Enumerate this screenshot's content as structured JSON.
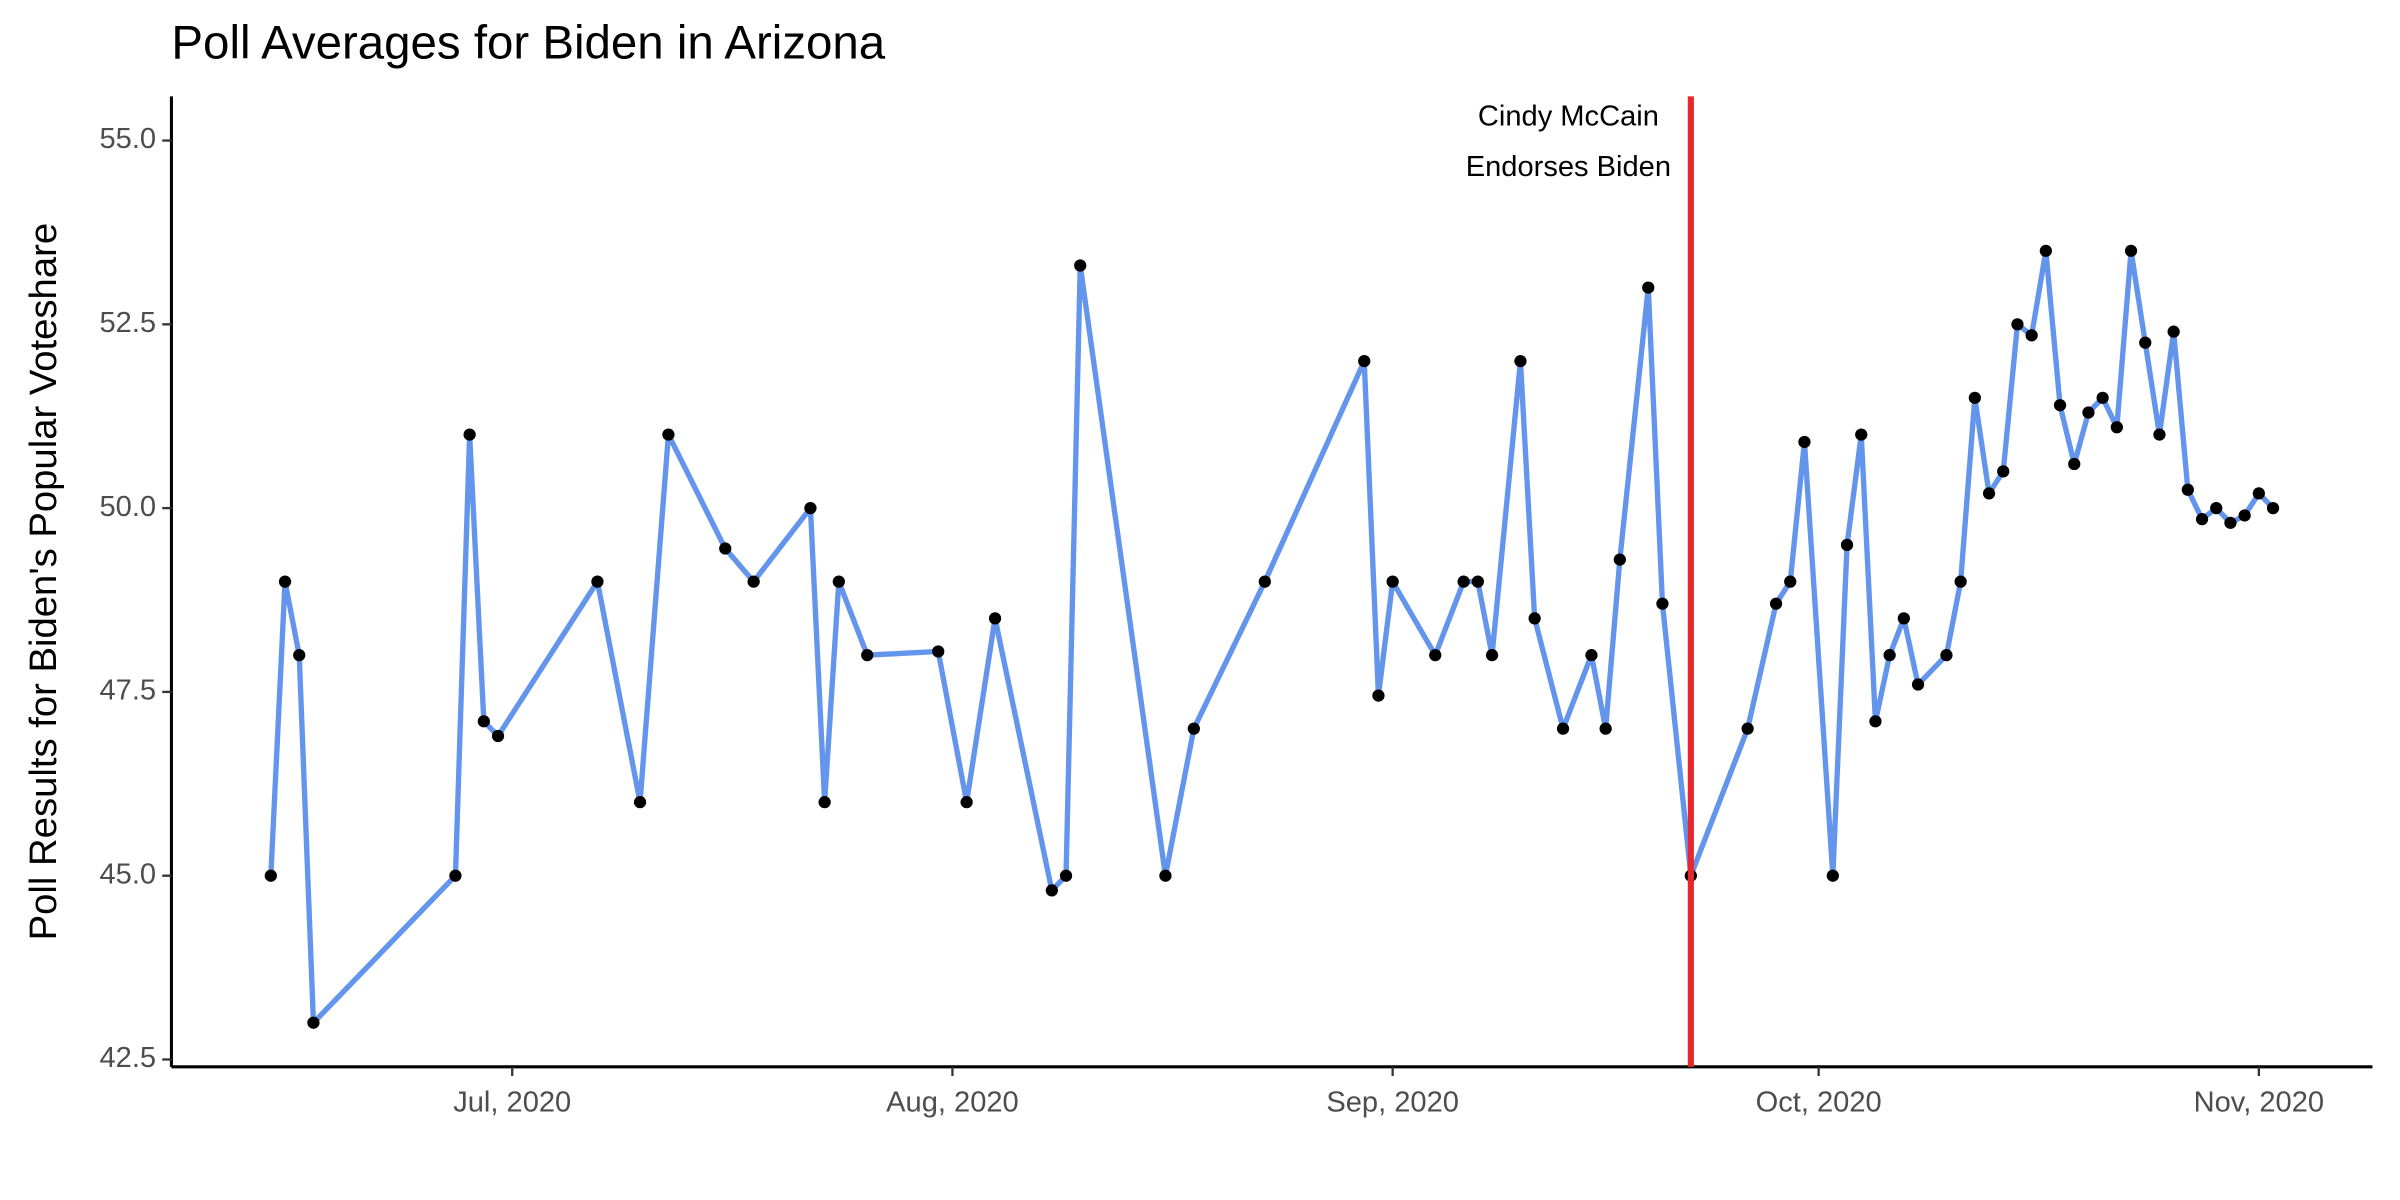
{
  "chart_data": {
    "type": "line",
    "title": "Poll Averages for Biden in Arizona",
    "y_label": "Poll Results for Biden's Popular Voteshare",
    "x": [
      "2020-06-14",
      "2020-06-15",
      "2020-06-16",
      "2020-06-17",
      "2020-06-27",
      "2020-06-28",
      "2020-06-29",
      "2020-06-30",
      "2020-07-07",
      "2020-07-10",
      "2020-07-12",
      "2020-07-16",
      "2020-07-18",
      "2020-07-22",
      "2020-07-23",
      "2020-07-24",
      "2020-07-26",
      "2020-07-31",
      "2020-08-02",
      "2020-08-04",
      "2020-08-08",
      "2020-08-09",
      "2020-08-10",
      "2020-08-16",
      "2020-08-18",
      "2020-08-23",
      "2020-08-30",
      "2020-08-31",
      "2020-09-01",
      "2020-09-04",
      "2020-09-06",
      "2020-09-07",
      "2020-09-08",
      "2020-09-10",
      "2020-09-11",
      "2020-09-13",
      "2020-09-15",
      "2020-09-16",
      "2020-09-17",
      "2020-09-19",
      "2020-09-20",
      "2020-09-22",
      "2020-09-26",
      "2020-09-28",
      "2020-09-29",
      "2020-09-30",
      "2020-10-02",
      "2020-10-03",
      "2020-10-04",
      "2020-10-05",
      "2020-10-06",
      "2020-10-07",
      "2020-10-08",
      "2020-10-10",
      "2020-10-11",
      "2020-10-12",
      "2020-10-13",
      "2020-10-14",
      "2020-10-15",
      "2020-10-16",
      "2020-10-17",
      "2020-10-18",
      "2020-10-19",
      "2020-10-20",
      "2020-10-21",
      "2020-10-22",
      "2020-10-23",
      "2020-10-24",
      "2020-10-25",
      "2020-10-26",
      "2020-10-27",
      "2020-10-28",
      "2020-10-29",
      "2020-10-30",
      "2020-10-31",
      "2020-11-01",
      "2020-11-02"
    ],
    "series": [
      {
        "name": "Biden",
        "color": "#6495ed",
        "point_color": "#000000",
        "values": [
          45,
          49,
          48,
          43,
          45,
          51,
          47.1,
          46.9,
          49,
          46,
          51,
          49.45,
          49,
          50,
          46,
          49,
          48,
          48.05,
          46,
          48.5,
          44.8,
          45,
          53.3,
          45,
          47,
          49,
          52,
          47.45,
          49,
          48,
          49,
          49,
          48,
          52,
          48.5,
          47,
          48,
          47,
          49.3,
          53,
          48.7,
          45,
          47,
          48.7,
          49,
          50.9,
          45,
          49.5,
          51,
          47.1,
          48,
          48.5,
          47.6,
          48,
          49,
          51.5,
          50.2,
          50.5,
          52.5,
          52.35,
          53.5,
          51.4,
          50.6,
          51.3,
          51.5,
          51.1,
          53.5,
          52.25,
          51,
          52.4,
          50.25,
          49.85,
          50,
          49.8,
          49.9,
          50.2,
          50
        ]
      }
    ],
    "xlim": [
      "2020-06-07",
      "2020-11-09"
    ],
    "xticks": [
      {
        "value": "2020-07-01",
        "label": "Jul, 2020"
      },
      {
        "value": "2020-08-01",
        "label": "Aug, 2020"
      },
      {
        "value": "2020-09-01",
        "label": "Sep, 2020"
      },
      {
        "value": "2020-10-01",
        "label": "Oct, 2020"
      },
      {
        "value": "2020-11-01",
        "label": "Nov, 2020"
      }
    ],
    "ylim": [
      42.4,
      55.6
    ],
    "yticks": [
      {
        "value": 42.5,
        "label": "42.5"
      },
      {
        "value": 45,
        "label": "45.0"
      },
      {
        "value": 47.5,
        "label": "47.5"
      },
      {
        "value": 50,
        "label": "50.0"
      },
      {
        "value": 52.5,
        "label": "52.5"
      },
      {
        "value": 55,
        "label": "55.0"
      }
    ],
    "vline": {
      "x": "2020-09-22",
      "color": "#e8262b",
      "label": [
        "Cindy McCain",
        "Endorses Biden"
      ]
    },
    "grid": false
  }
}
